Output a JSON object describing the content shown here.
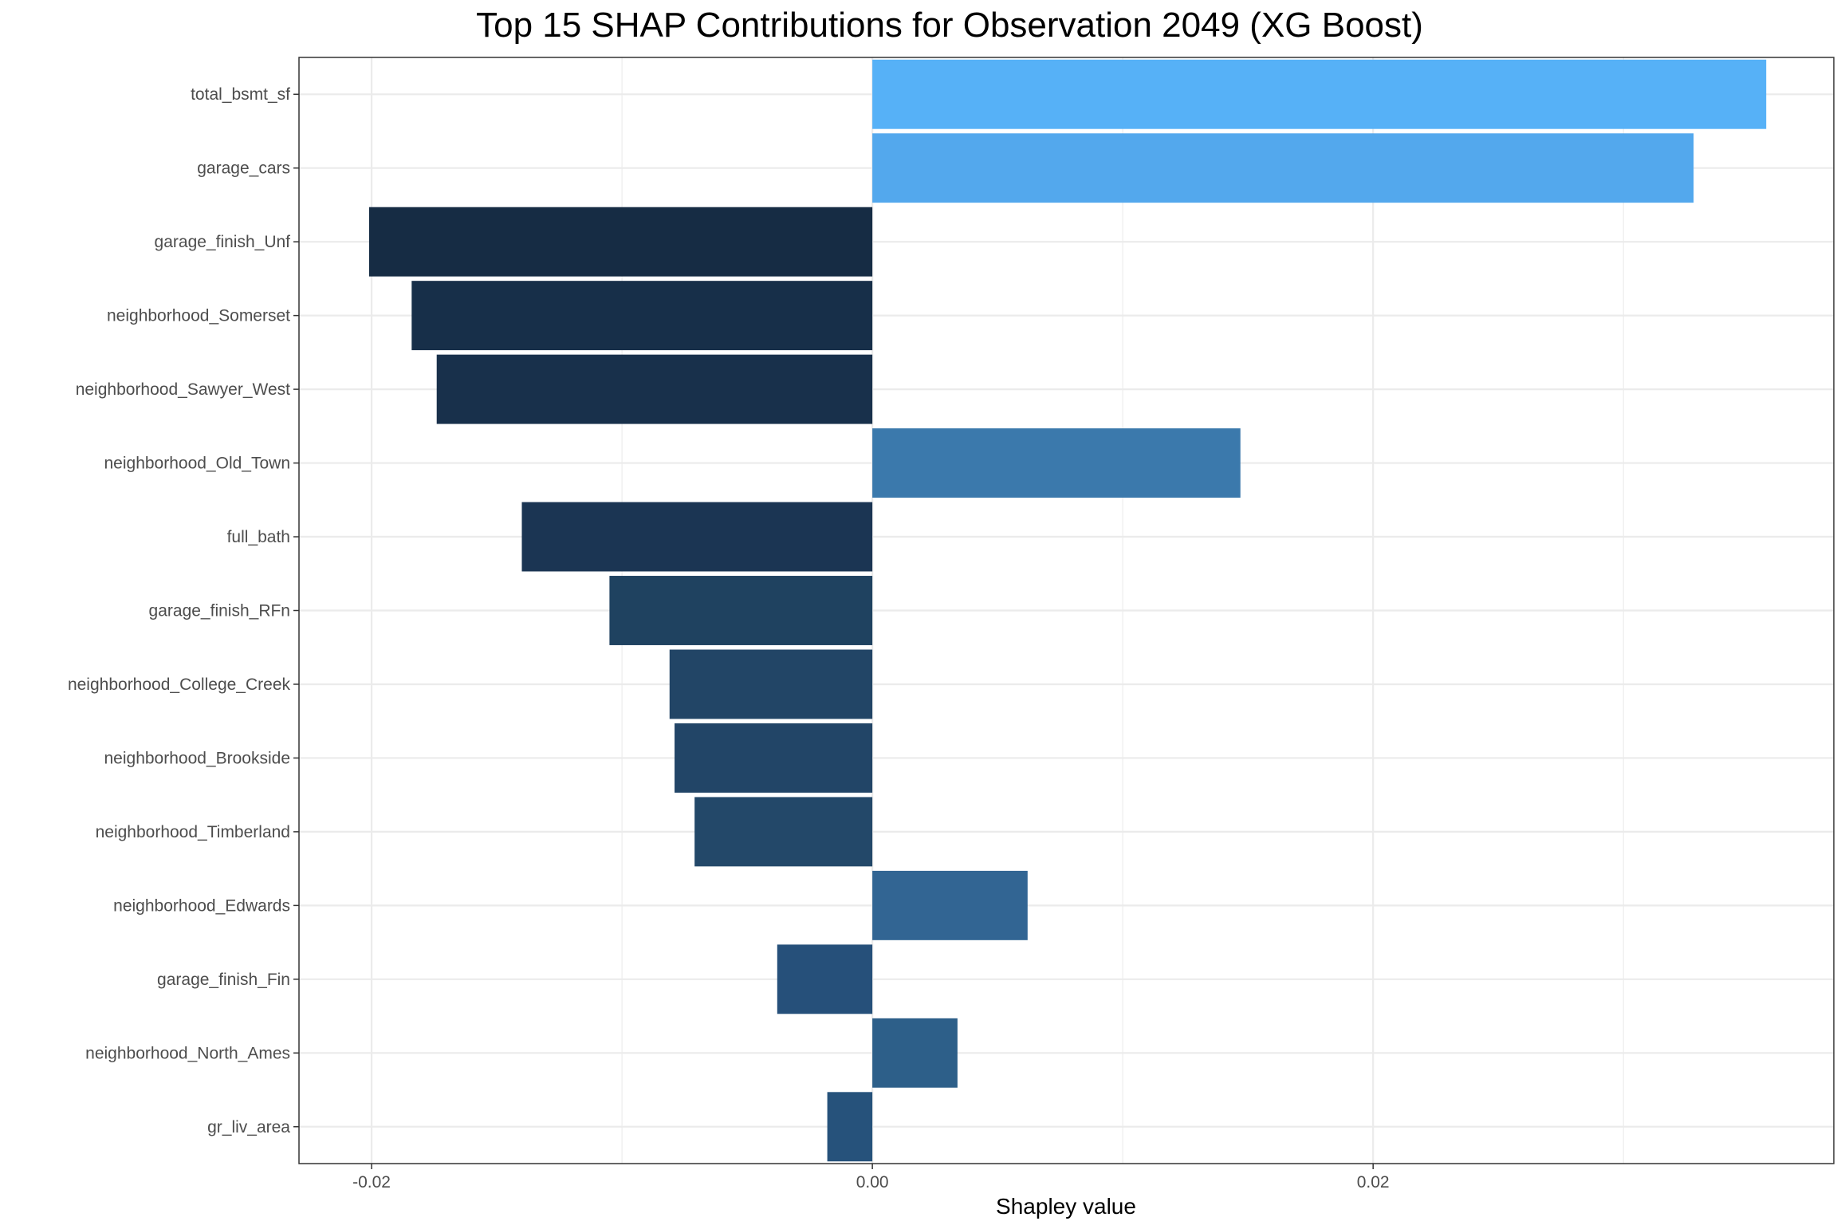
{
  "chart_data": {
    "type": "bar",
    "orientation": "horizontal",
    "title": "Top 15 SHAP Contributions for Observation 2049 (XG Boost)",
    "xlabel": "Shapley value",
    "ylabel": "",
    "xlim": [
      -0.0229,
      0.0384
    ],
    "x_ticks": [
      -0.02,
      0.0,
      0.02
    ],
    "x_tick_labels": [
      "-0.02",
      "0.00",
      "0.02"
    ],
    "grid": true,
    "legend": "none",
    "categories": [
      "total_bsmt_sf",
      "garage_cars",
      "garage_finish_Unf",
      "neighborhood_Somerset",
      "neighborhood_Sawyer_West",
      "neighborhood_Old_Town",
      "full_bath",
      "garage_finish_RFn",
      "neighborhood_College_Creek",
      "neighborhood_Brookside",
      "neighborhood_Timberland",
      "neighborhood_Edwards",
      "garage_finish_Fin",
      "neighborhood_North_Ames",
      "gr_liv_area"
    ],
    "values": [
      0.0357,
      0.0328,
      -0.0201,
      -0.0184,
      -0.0174,
      0.0147,
      -0.014,
      -0.0105,
      -0.0081,
      -0.0079,
      -0.0071,
      0.0062,
      -0.0038,
      0.0034,
      -0.0018
    ],
    "bar_colors": [
      "#56b1f7",
      "#53a8ed",
      "#162c44",
      "#172f49",
      "#18304b",
      "#3b79ac",
      "#1b3553",
      "#1f4260",
      "#224566",
      "#224567",
      "#234869",
      "#326593",
      "#26507a",
      "#2d5f89",
      "#26527b"
    ]
  }
}
